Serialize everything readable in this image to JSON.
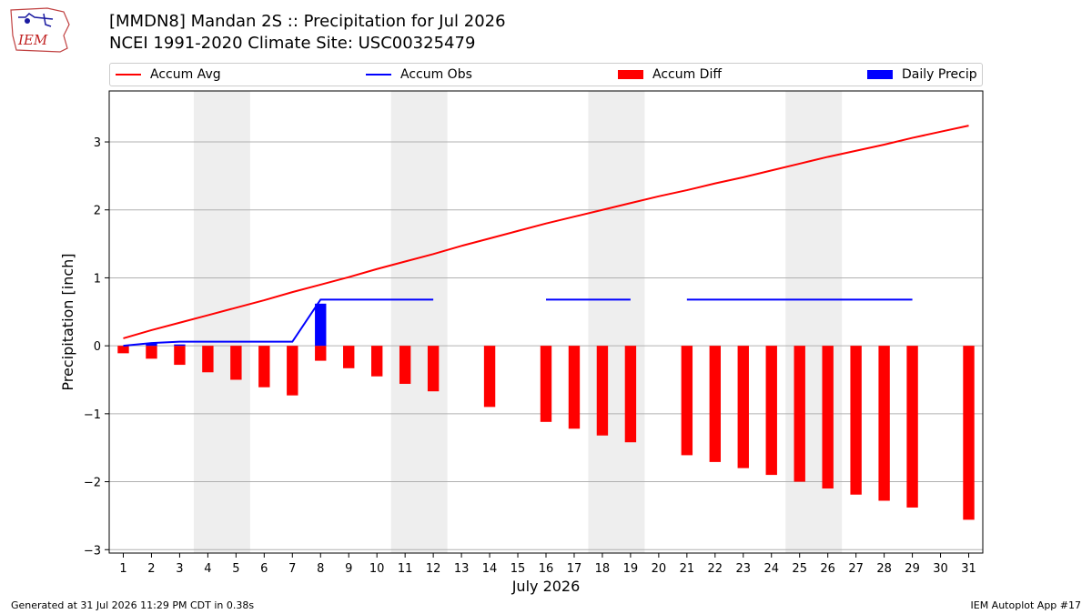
{
  "header": {
    "title_line1": "[MMDN8] Mandan 2S :: Precipitation for Jul 2026",
    "title_line2": "NCEI 1991-2020 Climate Site: USC00325479",
    "logo_text": "IEM"
  },
  "legend": {
    "items": [
      {
        "label": "Accum Avg",
        "kind": "line",
        "color": "#ff0000"
      },
      {
        "label": "Accum Obs",
        "kind": "line",
        "color": "#0000ff"
      },
      {
        "label": "Accum Diff",
        "kind": "bar",
        "color": "#ff0000"
      },
      {
        "label": "Daily Precip",
        "kind": "bar",
        "color": "#0000ff"
      }
    ]
  },
  "footer": {
    "left": "Generated at 31 Jul 2026 11:29 PM CDT in 0.38s",
    "right": "IEM Autoplot App #17"
  },
  "chart_data": {
    "type": "bar",
    "xlabel": "July 2026",
    "ylabel": "Precipitation [inch]",
    "ylim": [
      -3.05,
      3.75
    ],
    "xlim": [
      0.5,
      31.5
    ],
    "yticks": [
      -3,
      -2,
      -1,
      0,
      1,
      2,
      3
    ],
    "ytick_labels": [
      "−3",
      "−2",
      "−1",
      "0",
      "1",
      "2",
      "3"
    ],
    "categories": [
      "1",
      "2",
      "3",
      "4",
      "5",
      "6",
      "7",
      "8",
      "9",
      "10",
      "11",
      "12",
      "13",
      "14",
      "15",
      "16",
      "17",
      "18",
      "19",
      "20",
      "21",
      "22",
      "23",
      "24",
      "25",
      "26",
      "27",
      "28",
      "29",
      "30",
      "31"
    ],
    "grid": "y",
    "shaded_weekends": [
      [
        3.5,
        5.5
      ],
      [
        10.5,
        12.5
      ],
      [
        17.5,
        19.5
      ],
      [
        24.5,
        26.5
      ]
    ],
    "colors": {
      "avg": "#ff0000",
      "obs": "#0000ff",
      "diff": "#ff0000",
      "daily": "#0000ff",
      "shade": "#eeeeee",
      "grid": "#b0b0b0"
    },
    "series": [
      {
        "name": "Accum Avg",
        "x": [
          1,
          2,
          3,
          4,
          5,
          6,
          7,
          8,
          9,
          10,
          11,
          12,
          13,
          14,
          15,
          16,
          17,
          18,
          19,
          20,
          21,
          22,
          23,
          24,
          25,
          26,
          27,
          28,
          29,
          30,
          31
        ],
        "values": [
          0.11,
          0.23,
          0.34,
          0.45,
          0.56,
          0.67,
          0.79,
          0.9,
          1.01,
          1.13,
          1.24,
          1.35,
          1.47,
          1.58,
          1.69,
          1.8,
          1.9,
          2.0,
          2.1,
          2.2,
          2.29,
          2.39,
          2.48,
          2.58,
          2.68,
          2.78,
          2.87,
          2.96,
          3.06,
          3.15,
          3.24
        ]
      },
      {
        "name": "Accum Obs",
        "x": [
          1,
          2,
          3,
          4,
          5,
          6,
          7,
          8,
          9,
          10,
          11,
          12,
          16,
          17,
          18,
          19,
          21,
          22,
          23,
          24,
          25,
          26,
          27,
          28,
          29
        ],
        "values": [
          0.0,
          0.04,
          0.06,
          0.06,
          0.06,
          0.06,
          0.06,
          0.68,
          0.68,
          0.68,
          0.68,
          0.68,
          0.68,
          0.68,
          0.68,
          0.68,
          0.68,
          0.68,
          0.68,
          0.68,
          0.68,
          0.68,
          0.68,
          0.68,
          0.68
        ],
        "segments": [
          [
            1,
            12
          ],
          [
            16,
            19
          ],
          [
            21,
            29
          ]
        ]
      },
      {
        "name": "Accum Diff",
        "x": [
          1,
          2,
          3,
          4,
          5,
          6,
          7,
          8,
          9,
          10,
          11,
          12,
          14,
          16,
          17,
          18,
          19,
          21,
          22,
          23,
          24,
          25,
          26,
          27,
          28,
          29,
          31
        ],
        "values": [
          -0.11,
          -0.19,
          -0.28,
          -0.39,
          -0.5,
          -0.61,
          -0.73,
          -0.22,
          -0.33,
          -0.45,
          -0.56,
          -0.67,
          -0.9,
          -1.12,
          -1.22,
          -1.32,
          -1.42,
          -1.61,
          -1.71,
          -1.8,
          -1.9,
          -2.0,
          -2.1,
          -2.19,
          -2.28,
          -2.38,
          -2.56
        ]
      },
      {
        "name": "Daily Precip",
        "x": [
          2,
          3,
          8
        ],
        "values": [
          0.04,
          0.02,
          0.62
        ]
      }
    ]
  }
}
